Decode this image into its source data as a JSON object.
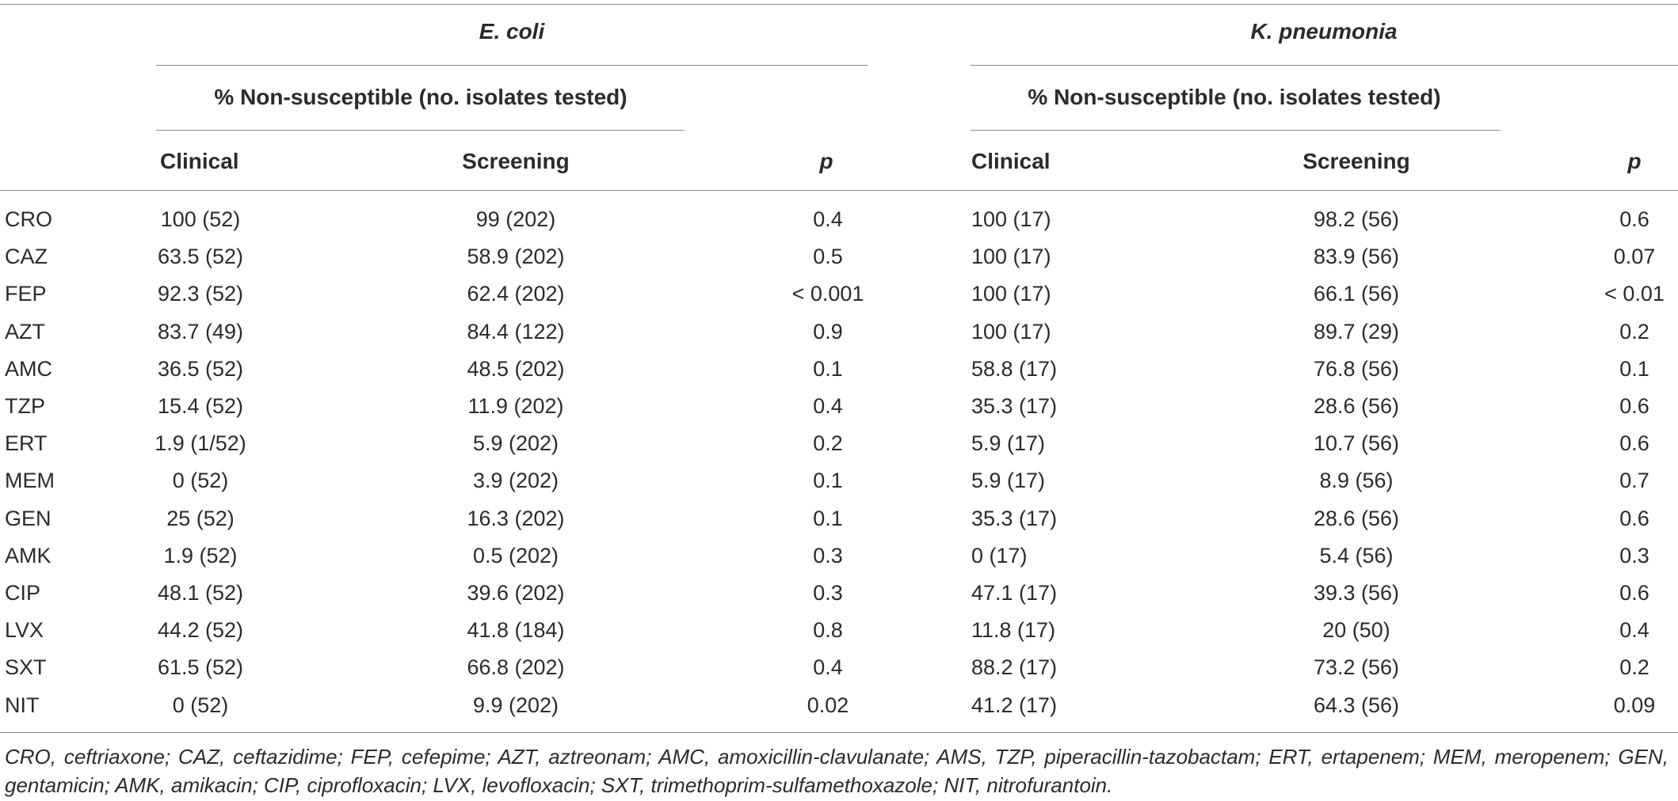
{
  "table": {
    "groups": {
      "ecoli": "E. coli",
      "kpn": "K. pneumonia"
    },
    "subheader": "% Non-susceptible (no. isolates tested)",
    "columns": {
      "clinical": "Clinical",
      "screening": "Screening",
      "p": "p"
    },
    "rows": [
      {
        "drug": "CRO",
        "ec_clin": "100 (52)",
        "ec_scr": "99 (202)",
        "ec_p": "0.4",
        "kp_clin": "100 (17)",
        "kp_scr": "98.2 (56)",
        "kp_p": "0.6"
      },
      {
        "drug": "CAZ",
        "ec_clin": "63.5 (52)",
        "ec_scr": "58.9 (202)",
        "ec_p": "0.5",
        "kp_clin": "100 (17)",
        "kp_scr": "83.9 (56)",
        "kp_p": "0.07"
      },
      {
        "drug": "FEP",
        "ec_clin": "92.3 (52)",
        "ec_scr": "62.4 (202)",
        "ec_p": "< 0.001",
        "kp_clin": "100 (17)",
        "kp_scr": "66.1 (56)",
        "kp_p": "< 0.01"
      },
      {
        "drug": "AZT",
        "ec_clin": "83.7 (49)",
        "ec_scr": "84.4 (122)",
        "ec_p": "0.9",
        "kp_clin": "100 (17)",
        "kp_scr": "89.7 (29)",
        "kp_p": "0.2"
      },
      {
        "drug": "AMC",
        "ec_clin": "36.5 (52)",
        "ec_scr": "48.5 (202)",
        "ec_p": "0.1",
        "kp_clin": "58.8 (17)",
        "kp_scr": "76.8 (56)",
        "kp_p": "0.1"
      },
      {
        "drug": "TZP",
        "ec_clin": "15.4 (52)",
        "ec_scr": "11.9 (202)",
        "ec_p": "0.4",
        "kp_clin": "35.3 (17)",
        "kp_scr": "28.6 (56)",
        "kp_p": "0.6"
      },
      {
        "drug": "ERT",
        "ec_clin": "1.9 (1/52)",
        "ec_scr": "5.9 (202)",
        "ec_p": "0.2",
        "kp_clin": "5.9 (17)",
        "kp_scr": "10.7 (56)",
        "kp_p": "0.6"
      },
      {
        "drug": "MEM",
        "ec_clin": "0 (52)",
        "ec_scr": "3.9 (202)",
        "ec_p": "0.1",
        "kp_clin": "5.9 (17)",
        "kp_scr": "8.9 (56)",
        "kp_p": "0.7"
      },
      {
        "drug": "GEN",
        "ec_clin": "25 (52)",
        "ec_scr": "16.3 (202)",
        "ec_p": "0.1",
        "kp_clin": "35.3 (17)",
        "kp_scr": "28.6 (56)",
        "kp_p": "0.6"
      },
      {
        "drug": "AMK",
        "ec_clin": "1.9 (52)",
        "ec_scr": "0.5 (202)",
        "ec_p": "0.3",
        "kp_clin": "0 (17)",
        "kp_scr": "5.4 (56)",
        "kp_p": "0.3"
      },
      {
        "drug": "CIP",
        "ec_clin": "48.1 (52)",
        "ec_scr": "39.6 (202)",
        "ec_p": "0.3",
        "kp_clin": "47.1 (17)",
        "kp_scr": "39.3 (56)",
        "kp_p": "0.6"
      },
      {
        "drug": "LVX",
        "ec_clin": "44.2 (52)",
        "ec_scr": "41.8 (184)",
        "ec_p": "0.8",
        "kp_clin": "11.8 (17)",
        "kp_scr": "20 (50)",
        "kp_p": "0.4"
      },
      {
        "drug": "SXT",
        "ec_clin": "61.5 (52)",
        "ec_scr": "66.8 (202)",
        "ec_p": "0.4",
        "kp_clin": "88.2 (17)",
        "kp_scr": "73.2 (56)",
        "kp_p": "0.2"
      },
      {
        "drug": "NIT",
        "ec_clin": "0 (52)",
        "ec_scr": "9.9 (202)",
        "ec_p": "0.02",
        "kp_clin": "41.2 (17)",
        "kp_scr": "64.3 (56)",
        "kp_p": "0.09"
      }
    ],
    "footnote": "CRO, ceftriaxone; CAZ, ceftazidime; FEP, cefepime; AZT, aztreonam; AMC, amoxicillin-clavulanate; AMS, TZP, piperacillin-tazobactam; ERT, ertapenem; MEM, meropenem; GEN, gentamicin; AMK, amikacin; CIP, ciprofloxacin; LVX, levofloxacin; SXT, trimethoprim-sulfamethoxazole; NIT, nitrofurantoin."
  }
}
